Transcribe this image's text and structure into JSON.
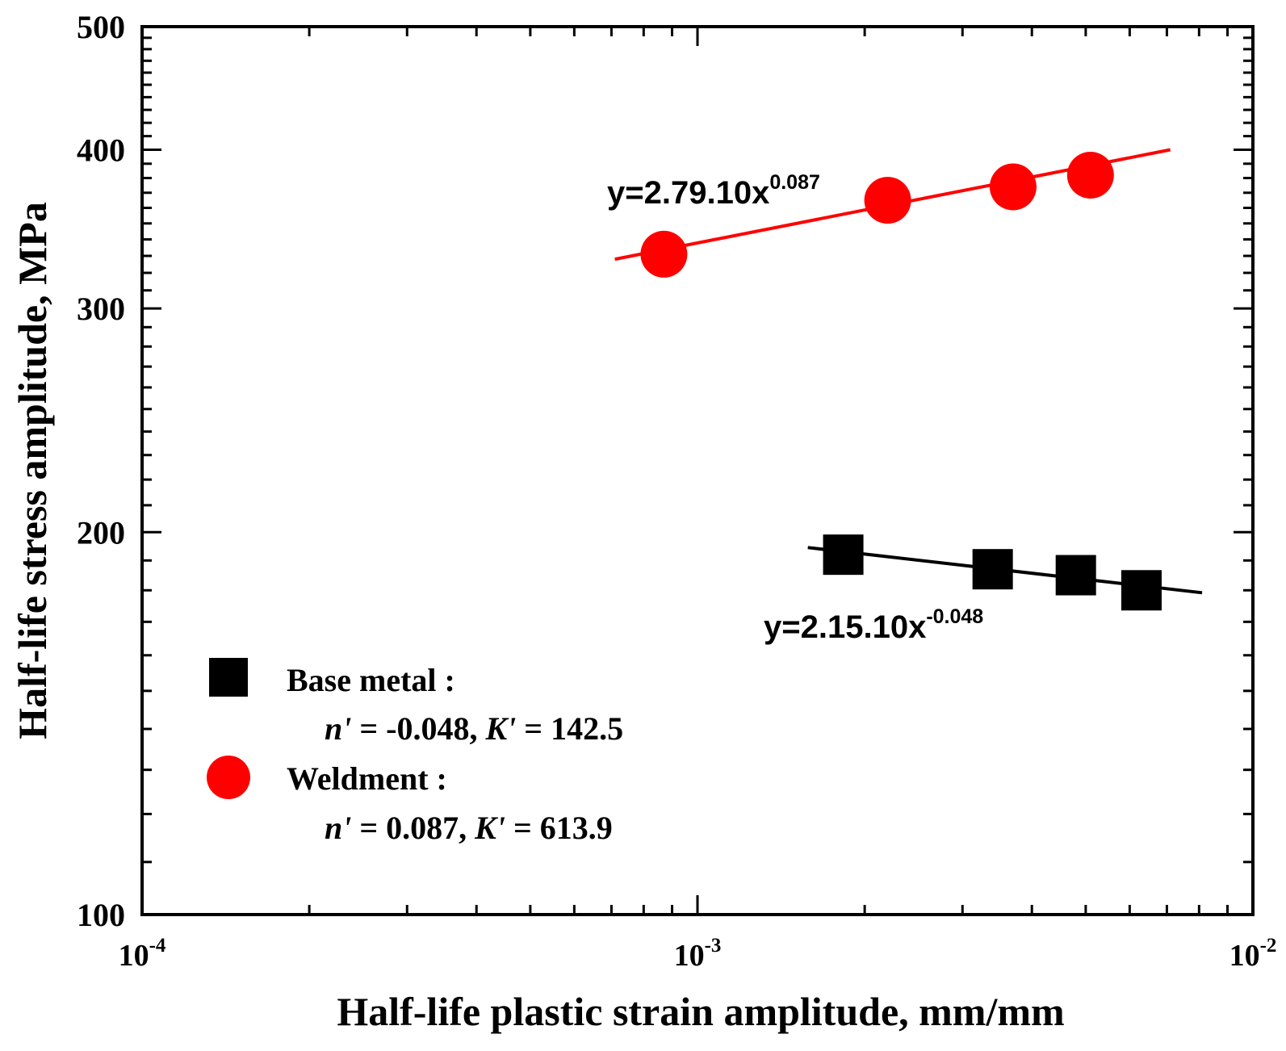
{
  "chart_data": {
    "type": "scatter",
    "title": "",
    "xlabel": "Half-life plastic strain amplitude, mm/mm",
    "ylabel": "Half-life stress amplitude, MPa",
    "xscale": "log",
    "yscale": "log",
    "xlim": [
      0.0001,
      0.01
    ],
    "ylim": [
      100,
      500
    ],
    "x_ticks": [
      {
        "value": 0.0001,
        "base": "10",
        "exp": "-4"
      },
      {
        "value": 0.001,
        "base": "10",
        "exp": "-3"
      },
      {
        "value": 0.01,
        "base": "10",
        "exp": "-2"
      }
    ],
    "y_ticks": [
      {
        "value": 100,
        "label": "100"
      },
      {
        "value": 200,
        "label": "200"
      },
      {
        "value": 300,
        "label": "300"
      },
      {
        "value": 400,
        "label": "400"
      },
      {
        "value": 500,
        "label": "500"
      }
    ],
    "series": [
      {
        "name": "Base metal",
        "marker": "square",
        "color": "#000000",
        "x": [
          0.00183,
          0.0034,
          0.0048,
          0.0063
        ],
        "y": [
          192,
          187,
          185,
          180
        ],
        "fit": {
          "x_range": [
            0.00158,
            0.0081
          ],
          "y_range": [
            194.5,
            179.2
          ]
        },
        "equation": {
          "base": "y=2.15.10x",
          "exp": "-0.048"
        },
        "legend": {
          "title": "Base metal :",
          "n_label": "n'",
          "n_value": "= -0.048,",
          "k_label": "K'",
          "k_value": "= 142.5"
        }
      },
      {
        "name": "Weldment",
        "marker": "circle",
        "color": "#ff0000",
        "x": [
          0.00087,
          0.0022,
          0.0037,
          0.0051
        ],
        "y": [
          331,
          365,
          374,
          382
        ],
        "fit": {
          "x_range": [
            0.00071,
            0.0071
          ],
          "y_range": [
            328,
            400
          ]
        },
        "equation": {
          "base": "y=2.79.10x",
          "exp": "0.087"
        },
        "legend": {
          "title": "Weldment :",
          "n_label": "n'",
          "n_value": "= 0.087,",
          "k_label": "K'",
          "k_value": "= 613.9"
        }
      }
    ],
    "legend_position": "bottom-left"
  }
}
